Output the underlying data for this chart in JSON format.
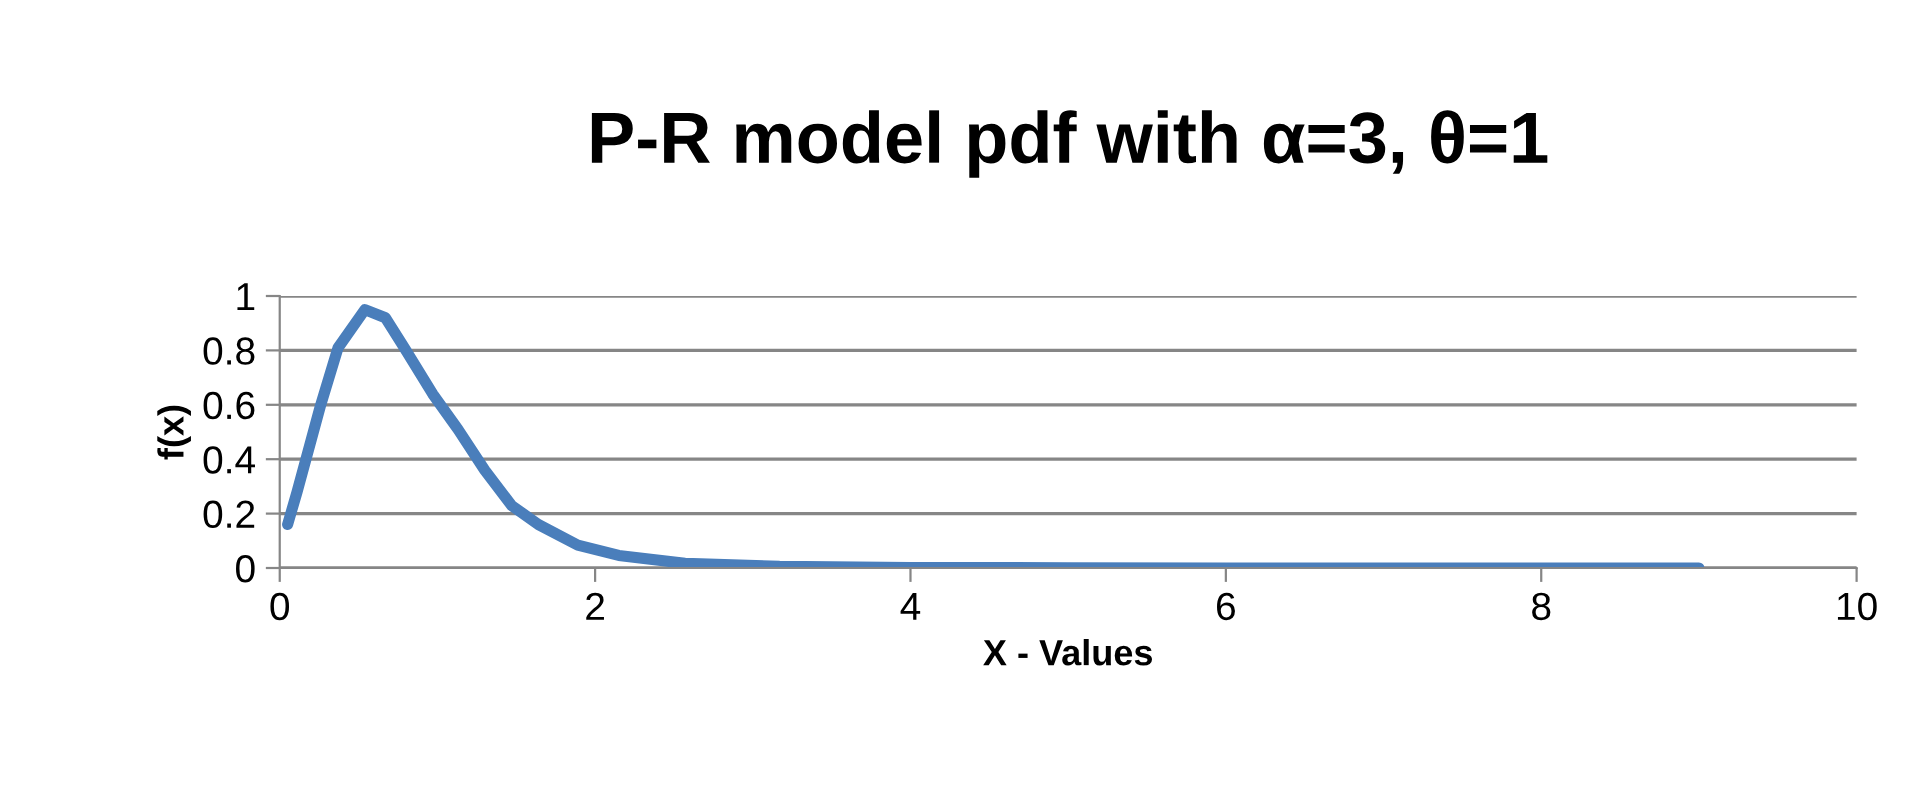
{
  "chart_data": {
    "type": "line",
    "title": "P-R model pdf with α=3, θ=1",
    "xlabel": "X - Values",
    "ylabel": "f(x)",
    "series": [
      {
        "color": "#4a7ebb",
        "x": [
          0.05,
          0.11,
          0.26,
          0.37,
          0.54,
          0.67,
          0.79,
          0.97,
          1.13,
          1.3,
          1.47,
          1.64,
          1.89,
          2.15,
          2.57,
          3.17,
          4,
          5,
          6,
          7,
          8,
          9
        ],
        "values": [
          0.16,
          0.28,
          0.6,
          0.81,
          0.95,
          0.92,
          0.81,
          0.64,
          0.51,
          0.36,
          0.23,
          0.16,
          0.084,
          0.046,
          0.017,
          0.006,
          0.002,
          0.001,
          0,
          0,
          0,
          0
        ]
      }
    ],
    "xlim": [
      0,
      10
    ],
    "xticks": [
      0,
      2,
      4,
      6,
      8,
      10
    ],
    "ylim": [
      0,
      1
    ],
    "yticks": [
      0,
      0.2,
      0.4,
      0.6,
      0.8,
      1
    ],
    "grid": "y",
    "marker": "none",
    "line_style": "solid",
    "legend": false
  }
}
